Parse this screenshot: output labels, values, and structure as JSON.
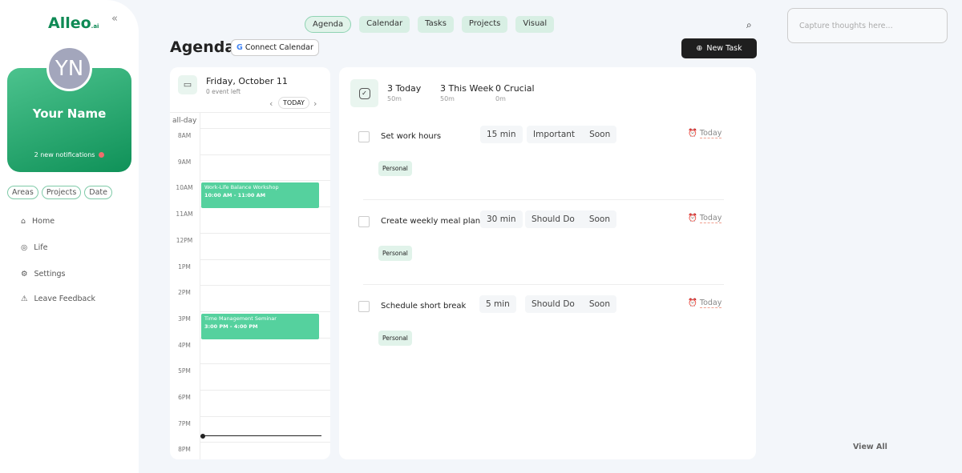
{
  "sidebar": {
    "logo": "Alleo",
    "logo_suffix": ".ai",
    "avatar_initials": "YN",
    "name": "Your Name",
    "notifications": "2 new notifications",
    "filters": [
      "Areas",
      "Projects",
      "Date"
    ],
    "nav": [
      {
        "label": "Home",
        "icon": "home-icon"
      },
      {
        "label": "Life",
        "icon": "target-icon"
      },
      {
        "label": "Settings",
        "icon": "gear-icon"
      },
      {
        "label": "Leave Feedback",
        "icon": "feedback-icon"
      }
    ]
  },
  "topnav": {
    "tabs": [
      "Agenda",
      "Calendar",
      "Tasks",
      "Projects",
      "Visual"
    ],
    "active": "Agenda"
  },
  "header": {
    "title": "Agenda",
    "connect_calendar": "Connect Calendar",
    "new_task": "New Task"
  },
  "capture": {
    "placeholder": "Capture thoughts here..."
  },
  "calendar": {
    "date": "Friday, October 11",
    "events_left": "0 event left",
    "today_button": "TODAY",
    "all_day": "all-day",
    "hours": [
      "8AM",
      "9AM",
      "10AM",
      "11AM",
      "12PM",
      "1PM",
      "2PM",
      "3PM",
      "4PM",
      "5PM",
      "6PM",
      "7PM",
      "8PM"
    ],
    "events": [
      {
        "title": "Work-Life Balance Workshop",
        "time": "10:00 AM - 11:00 AM",
        "start": 10
      },
      {
        "title": "Time Management Seminar",
        "time": "3:00 PM - 4:00 PM",
        "start": 15
      }
    ]
  },
  "summary": [
    {
      "label": "3 Today",
      "sub": "50m"
    },
    {
      "label": "3 This Week",
      "sub": "50m"
    },
    {
      "label": "0 Crucial",
      "sub": "0m"
    }
  ],
  "tasks": [
    {
      "title": "Set work hours",
      "duration": "15 min",
      "priority": "Important",
      "urgency": "Soon",
      "due": "Today",
      "tag": "Personal"
    },
    {
      "title": "Create weekly meal plan",
      "duration": "30 min",
      "priority": "Should Do",
      "urgency": "Soon",
      "due": "Today",
      "tag": "Personal"
    },
    {
      "title": "Schedule short break",
      "duration": "5 min",
      "priority": "Should Do",
      "urgency": "Soon",
      "due": "Today",
      "tag": "Personal"
    }
  ],
  "view_all": "View All",
  "colors": {
    "accent": "#0f9158",
    "event": "#55d19e",
    "due": "#e87a6b"
  }
}
